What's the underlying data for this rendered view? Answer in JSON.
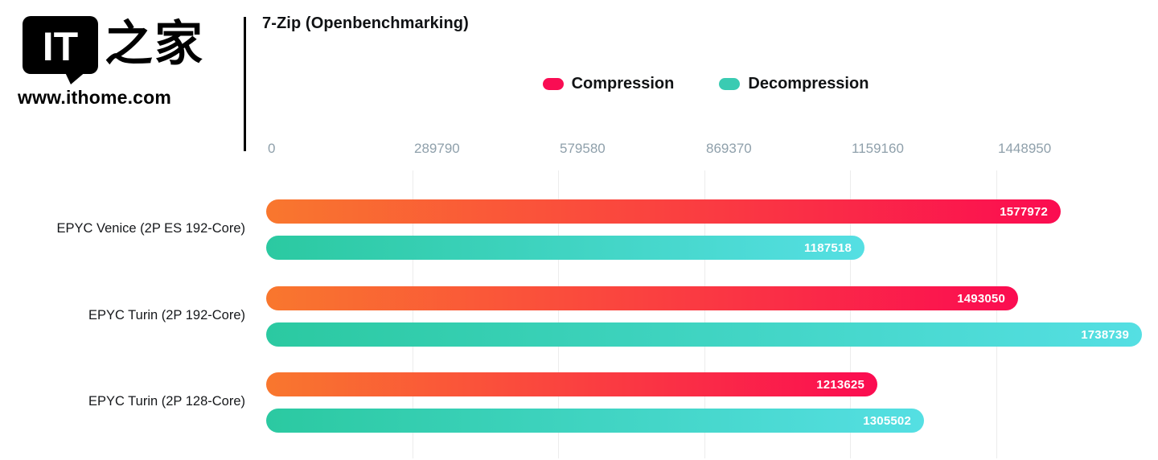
{
  "branding": {
    "logo_text": "IT",
    "logo_cn": "之家",
    "site_url": "www.ithome.com"
  },
  "chart_data": {
    "type": "bar",
    "orientation": "horizontal",
    "title": "7-Zip (Openbenchmarking)",
    "categories": [
      "EPYC Venice (2P ES 192-Core)",
      "EPYC Turin (2P 192-Core)",
      "EPYC Turin (2P 128-Core)"
    ],
    "series": [
      {
        "name": "Compression",
        "values": [
          1577972,
          1493050,
          1213625
        ],
        "gradient_start": "#f9772e",
        "gradient_end": "#fb0c51",
        "legend_color": "#f90d53"
      },
      {
        "name": "Decompression",
        "values": [
          1187518,
          1738739,
          1305502
        ],
        "gradient_start": "#2bc9a1",
        "gradient_end": "#55dfe3",
        "legend_color": "#3acbb2"
      }
    ],
    "x_ticks": [
      0,
      289790,
      579580,
      869370,
      1159160,
      1448950
    ],
    "xlim": [
      0,
      1738739
    ],
    "grid": true,
    "legend_position": "top-center",
    "colors": {
      "tick_label": "#8fa0ab",
      "gridline": "#ececec",
      "title": "#101214",
      "category_label": "#16181b",
      "bar_value_text": "#ffffff"
    }
  }
}
